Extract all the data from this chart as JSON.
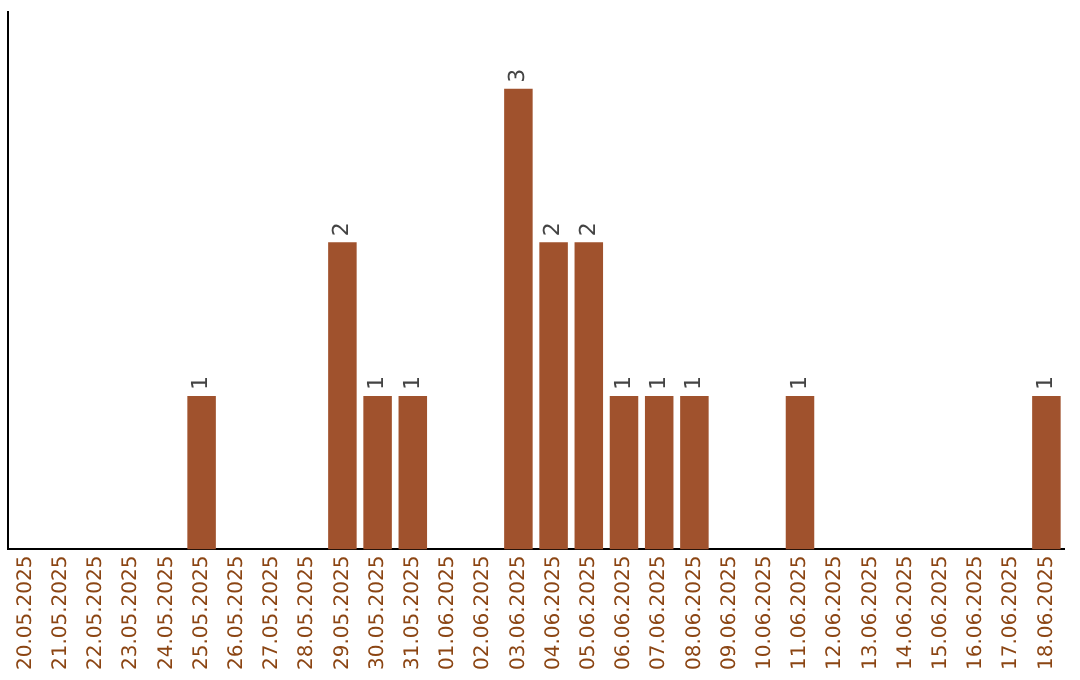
{
  "chart_data": {
    "type": "bar",
    "categories": [
      "20.05.2025",
      "21.05.2025",
      "22.05.2025",
      "23.05.2025",
      "24.05.2025",
      "25.05.2025",
      "26.05.2025",
      "27.05.2025",
      "28.05.2025",
      "29.05.2025",
      "30.05.2025",
      "31.05.2025",
      "01.06.2025",
      "02.06.2025",
      "03.06.2025",
      "04.06.2025",
      "05.06.2025",
      "06.06.2025",
      "07.06.2025",
      "08.06.2025",
      "09.06.2025",
      "10.06.2025",
      "11.06.2025",
      "12.06.2025",
      "13.06.2025",
      "14.06.2025",
      "15.06.2025",
      "16.06.2025",
      "17.06.2025",
      "18.06.2025"
    ],
    "values": [
      0,
      0,
      0,
      0,
      0,
      1,
      0,
      0,
      0,
      2,
      1,
      1,
      0,
      0,
      3,
      2,
      2,
      1,
      1,
      1,
      0,
      0,
      1,
      0,
      0,
      0,
      0,
      0,
      0,
      1
    ],
    "value_labels": [
      null,
      null,
      null,
      null,
      null,
      "1",
      null,
      null,
      null,
      "2",
      "1",
      "1",
      null,
      null,
      "3",
      "2",
      "2",
      "1",
      "1",
      "1",
      null,
      null,
      "1",
      null,
      null,
      null,
      null,
      null,
      null,
      "1"
    ],
    "color": "#a0522d",
    "tick_labels": "x",
    "grid": false,
    "legend": false
  }
}
